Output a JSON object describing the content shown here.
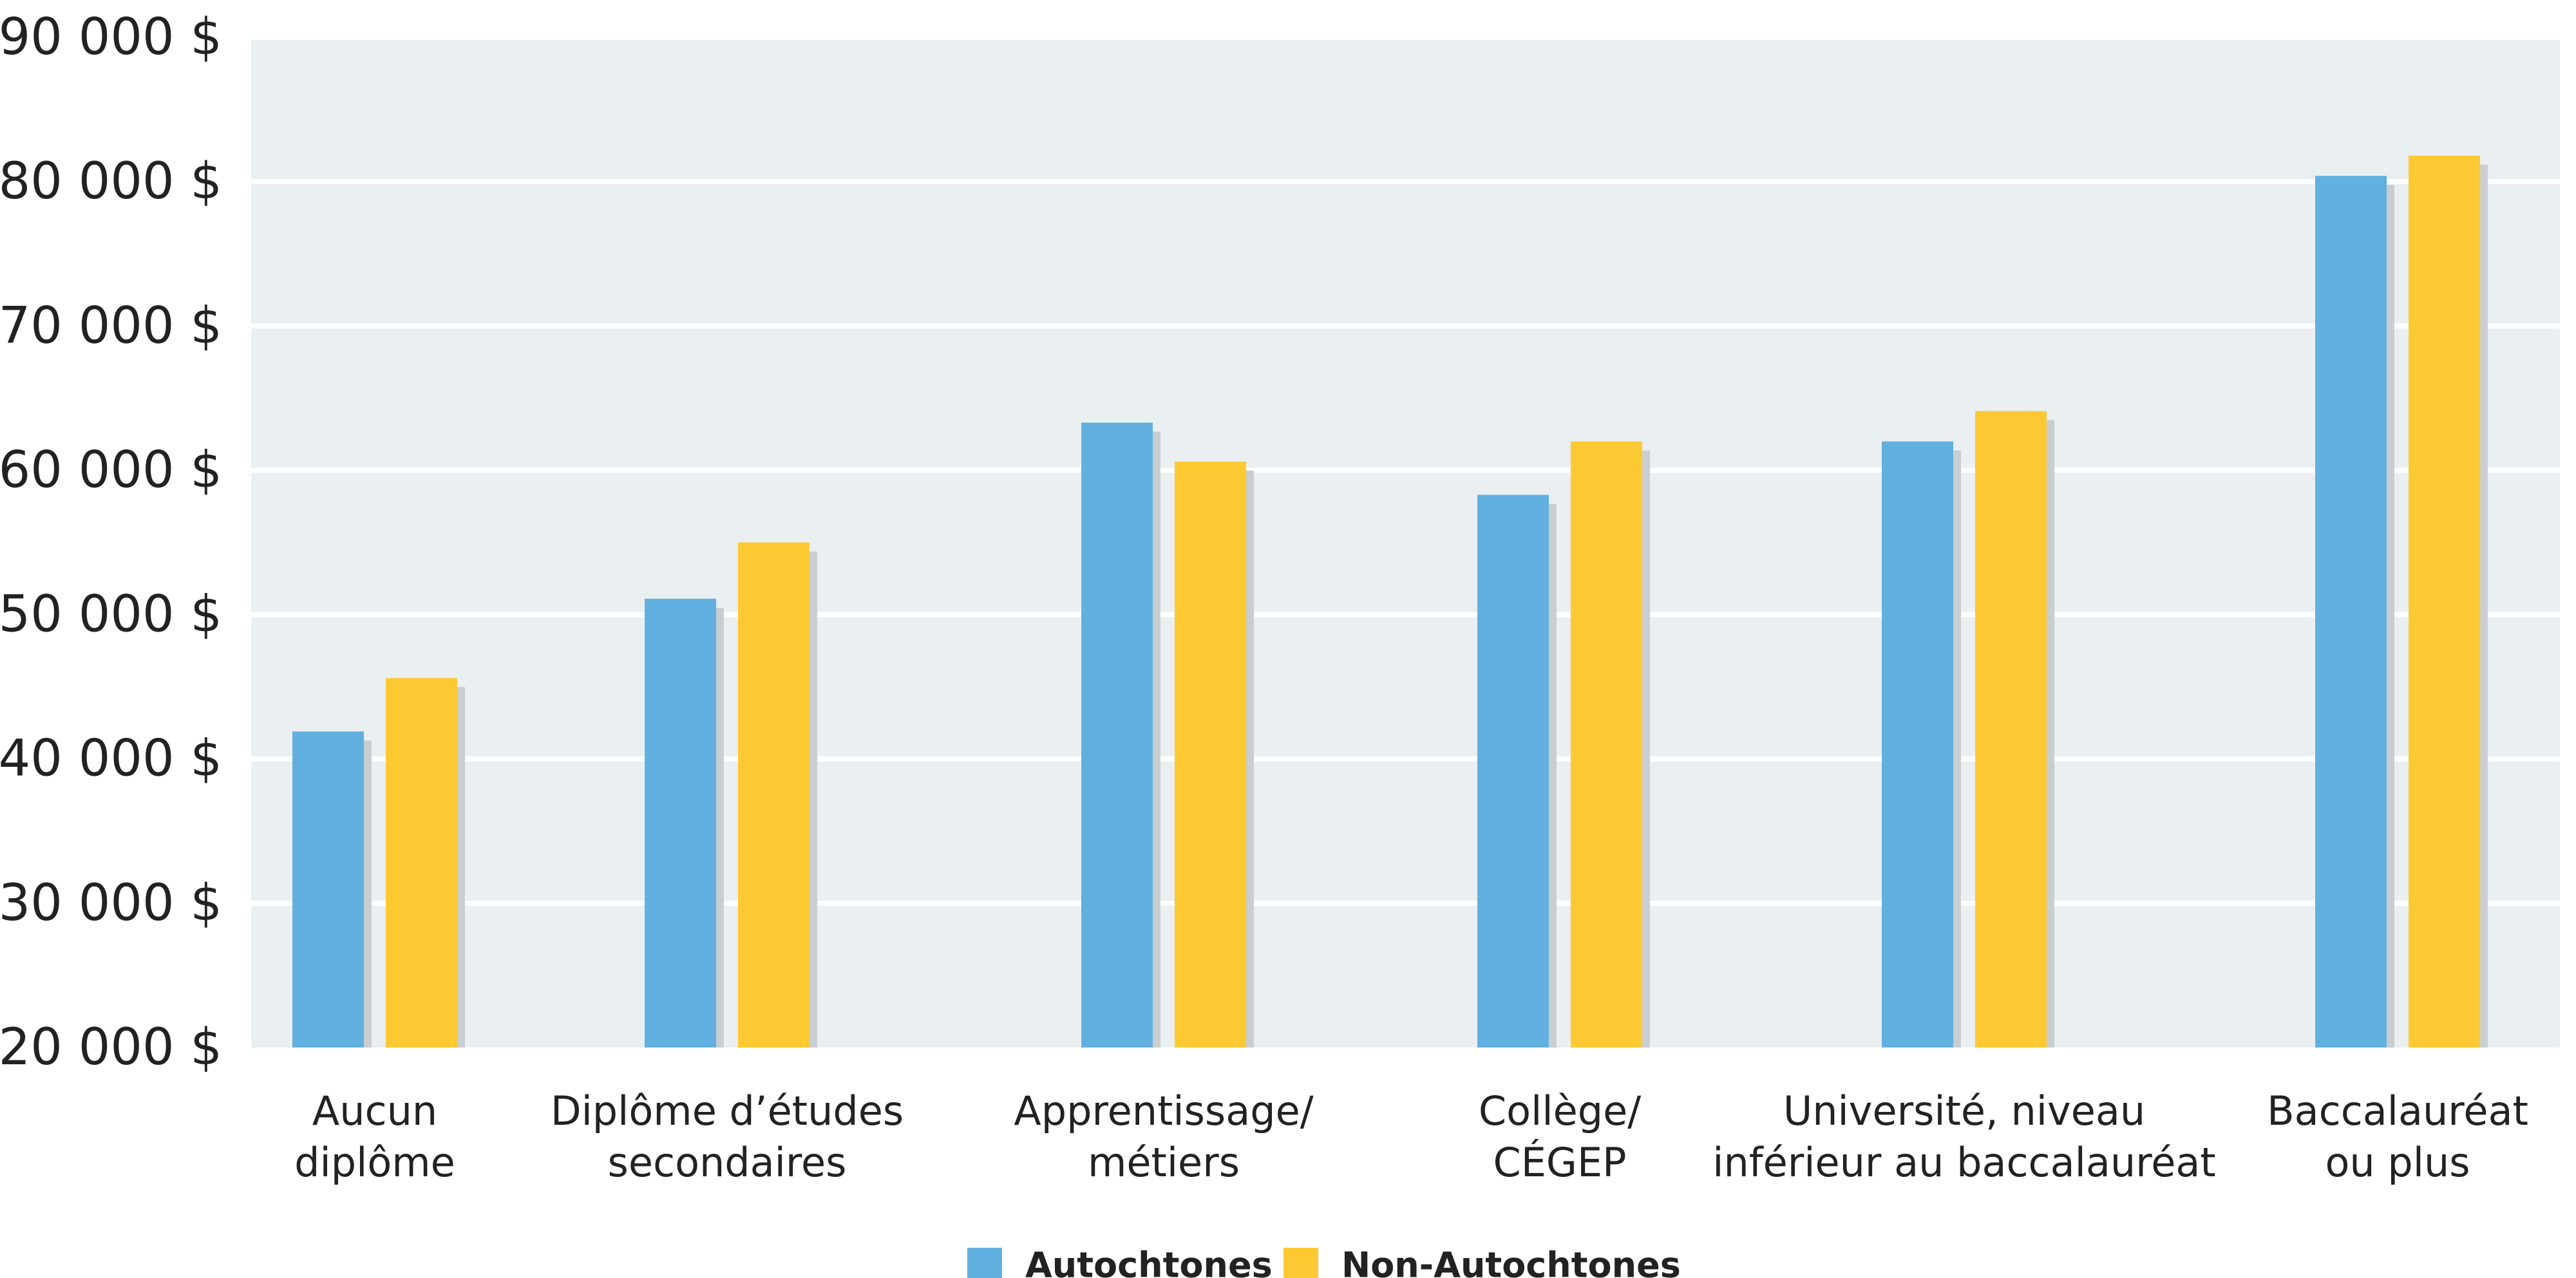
{
  "chart_data": {
    "type": "bar",
    "title": "",
    "xlabel": "",
    "ylabel": "",
    "ylim": [
      20000,
      90000
    ],
    "yticks": [
      20000,
      30000,
      40000,
      50000,
      60000,
      70000,
      80000,
      90000
    ],
    "ytick_labels": [
      "20 000 $",
      "30 000 $",
      "40 000 $",
      "50 000 $",
      "60 000 $",
      "70 000 $",
      "80 000 $",
      "90 000 $"
    ],
    "grid": true,
    "legend_position": "bottom-center",
    "categories": [
      [
        "Aucun",
        "diplôme"
      ],
      [
        "Diplôme d’études",
        "secondaires"
      ],
      [
        "Apprentissage/",
        "métiers"
      ],
      [
        "Collège/",
        "CÉGEP"
      ],
      [
        "Université, niveau",
        "inférieur au baccalauréat"
      ],
      [
        "Baccalauréat",
        "ou plus"
      ]
    ],
    "series": [
      {
        "name": "Autochtones",
        "color": "#62b0e0",
        "values": [
          41900,
          51100,
          63300,
          58300,
          62000,
          80400
        ]
      },
      {
        "name": "Non-Autochtones",
        "color": "#fdc933",
        "values": [
          45600,
          55000,
          60600,
          62000,
          64100,
          81800
        ]
      }
    ]
  },
  "colors": {
    "plot_background": "#eaeff2",
    "gridline": "#ffffff",
    "bar_shadow": "#c9ced2"
  }
}
